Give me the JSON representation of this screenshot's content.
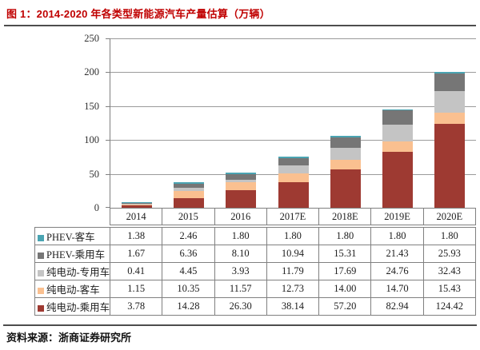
{
  "title": "图 1：2014-2020 年各类型新能源汽车产量估算（万辆）",
  "source": "资料来源：浙商证券研究所",
  "colors": {
    "title_red": "#c00000",
    "rule_gray": "#4d4d4d",
    "axis_gray": "#808080",
    "grid_gray": "#9b9b9b"
  },
  "chart_data": {
    "type": "bar",
    "stacked": true,
    "title": "图 1：2014-2020 年各类型新能源汽车产量估算（万辆）",
    "xlabel": "",
    "ylabel": "",
    "categories": [
      "2014",
      "2015",
      "2016",
      "2017E",
      "2018E",
      "2019E",
      "2020E"
    ],
    "series": [
      {
        "name": "PHEV-客车",
        "color": "#4aa4b2",
        "values": [
          1.38,
          2.46,
          1.8,
          1.8,
          1.8,
          1.8,
          1.8
        ]
      },
      {
        "name": "PHEV-乘用车",
        "color": "#767676",
        "values": [
          1.67,
          6.36,
          8.1,
          10.94,
          15.31,
          21.43,
          25.93
        ]
      },
      {
        "name": "纯电动-专用车",
        "color": "#c4c4c4",
        "values": [
          0.41,
          4.45,
          3.93,
          11.79,
          17.69,
          24.76,
          32.43
        ]
      },
      {
        "name": "纯电动-客车",
        "color": "#fac090",
        "values": [
          1.15,
          10.35,
          11.57,
          12.73,
          14.0,
          14.7,
          15.43
        ]
      },
      {
        "name": "纯电动-乘用车",
        "color": "#9e3a32",
        "values": [
          3.78,
          14.28,
          26.3,
          38.14,
          57.2,
          82.94,
          124.42
        ]
      }
    ],
    "stacking_order_bottom_to_top": [
      "纯电动-乘用车",
      "纯电动-客车",
      "纯电动-专用车",
      "PHEV-乘用车",
      "PHEV-客车"
    ],
    "ylim": [
      0,
      250
    ],
    "yticks": [
      0,
      50,
      100,
      150,
      200,
      250
    ],
    "grid": true,
    "legend_position": "table-below"
  }
}
